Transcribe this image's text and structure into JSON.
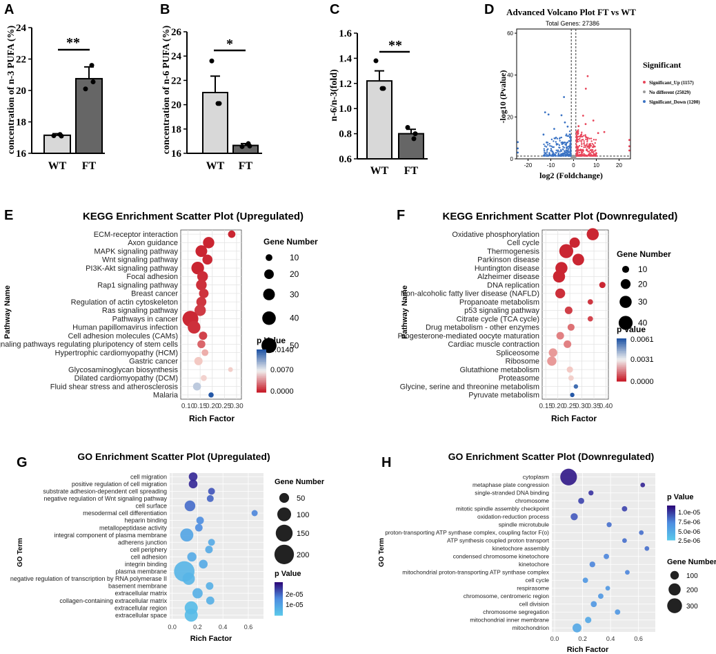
{
  "panel_letters": [
    "A",
    "B",
    "C",
    "D",
    "E",
    "F",
    "G",
    "H"
  ],
  "colors": {
    "wt_bar": "#d8d8d8",
    "ft_bar": "#666666",
    "volcano_up": "#e8455a",
    "volcano_down": "#3b73c4",
    "volcano_nd": "#9a9a9a"
  },
  "chart_data": [
    {
      "id": "A",
      "type": "bar",
      "ylabel": "concentration of n-3 PUFA (%)",
      "ylim": [
        16,
        24
      ],
      "yticks": [
        16,
        18,
        20,
        22,
        24
      ],
      "categories": [
        "WT",
        "FT"
      ],
      "values": [
        17.15,
        20.75
      ],
      "errors": [
        0.1,
        0.75
      ],
      "points": [
        [
          17.12,
          17.2,
          17.1
        ],
        [
          20.1,
          21.6,
          20.55
        ]
      ],
      "significance": "**"
    },
    {
      "id": "B",
      "type": "bar",
      "ylabel": "concentration of n-6 PUFA (%)",
      "ylim": [
        16,
        26
      ],
      "yticks": [
        16,
        18,
        20,
        22,
        24,
        26
      ],
      "categories": [
        "WT",
        "FT"
      ],
      "values": [
        21.0,
        16.65
      ],
      "errors": [
        1.35,
        0.15
      ],
      "points": [
        [
          23.6,
          20.1,
          20.1
        ],
        [
          16.55,
          16.8,
          16.6
        ]
      ],
      "significance": "*"
    },
    {
      "id": "C",
      "type": "bar",
      "ylabel": "n-6/n-3(fold)",
      "ylim": [
        0.6,
        1.6
      ],
      "yticks": [
        "0.6",
        "0.8",
        "1.0",
        "1.2",
        "1.4",
        "1.6"
      ],
      "categories": [
        "WT",
        "FT"
      ],
      "values": [
        1.22,
        0.8
      ],
      "errors": [
        0.08,
        0.035
      ],
      "points": [
        [
          1.38,
          1.16,
          1.16
        ],
        [
          0.85,
          0.76,
          0.8
        ]
      ],
      "significance": "**"
    },
    {
      "id": "D",
      "type": "scatter",
      "title": "Advanced Volcano Plot FT vs WT",
      "subtitle": "Total Genes: 27386",
      "xlabel": "log2 (Foldchange)",
      "ylabel": "-log10 (Pvalue)",
      "xlim": [
        -25,
        25
      ],
      "ylim": [
        0,
        62
      ],
      "xticks": [
        -20,
        -10,
        0,
        10,
        20
      ],
      "yticks": [
        0,
        20,
        40,
        60
      ],
      "legend_title": "Significant",
      "legend": [
        {
          "label": "Significant_Up (1157)",
          "color": "#e8455a"
        },
        {
          "label": "No different (25029)",
          "color": "#9a9a9a"
        },
        {
          "label": "Significant_Down (1200)",
          "color": "#3b73c4"
        }
      ],
      "outliers": [
        [
          6.2,
          39.5
        ],
        [
          5.4,
          33.5
        ],
        [
          -4.2,
          29.5
        ],
        [
          -12.5,
          22.2
        ],
        [
          -11,
          21.2
        ],
        [
          -5.3,
          20.8
        ],
        [
          4.2,
          20.6
        ],
        [
          -3.8,
          17.4
        ],
        [
          8.7,
          18.3
        ],
        [
          5.3,
          16.6
        ],
        [
          -2.6,
          15.4
        ],
        [
          2.2,
          15.6
        ],
        [
          13.5,
          12.8
        ],
        [
          -8.5,
          14.3
        ],
        [
          10.8,
          12.3
        ],
        [
          -13.2,
          11.6
        ]
      ]
    },
    {
      "id": "E",
      "type": "scatter",
      "title": "KEGG Enrichment Scatter Plot (Upregulated)",
      "xlabel": "Rich Factor",
      "ylabel": "Pathway Name",
      "xlim": [
        0.07,
        0.32
      ],
      "xticks": [
        "0.10",
        "0.15",
        "0.20",
        "0.25",
        "0.30"
      ],
      "size_title": "Gene Number",
      "size_legend": [
        10,
        20,
        30,
        40,
        50
      ],
      "color_title": "p Value",
      "color_ticks": [
        "0.0140",
        "0.0070",
        "0.0000"
      ],
      "color_min": 0,
      "color_max": 0.014,
      "terms": [
        "ECM-receptor interaction",
        "Axon guidance",
        "MAPK signaling pathway",
        "Wnt signaling pathway",
        "PI3K-Akt signaling pathway",
        "Focal adhesion",
        "Rap1 signaling pathway",
        "Breast cancer",
        "Regulation of actin cytoskeleton",
        "Ras signaling pathway",
        "Pathways in cancer",
        "Human papillomavirus infection",
        "Cell adhesion molecules (CAMs)",
        "Signaling pathways regulating pluripotency of stem cells",
        "Hypertrophic cardiomyopathy (HCM)",
        "Gastric cancer",
        "Glycosaminoglycan biosynthesis",
        "Dilated cardiomyopathy (DCM)",
        "Fluid shear stress and atherosclerosis",
        "Malaria"
      ],
      "rich": [
        0.28,
        0.185,
        0.155,
        0.18,
        0.14,
        0.16,
        0.155,
        0.165,
        0.155,
        0.15,
        0.11,
        0.125,
        0.162,
        0.155,
        0.17,
        0.143,
        0.275,
        0.165,
        0.137,
        0.195
      ],
      "genes": [
        12,
        28,
        30,
        22,
        35,
        25,
        25,
        20,
        22,
        28,
        55,
        35,
        15,
        14,
        10,
        15,
        5,
        8,
        14,
        6
      ],
      "pvalue": [
        0.0002,
        0.0002,
        0.0002,
        0.0003,
        0.0002,
        0.0004,
        0.0005,
        0.0006,
        0.0007,
        0.0008,
        0.0003,
        0.0005,
        0.001,
        0.002,
        0.004,
        0.005,
        0.0055,
        0.006,
        0.0105,
        0.014
      ]
    },
    {
      "id": "F",
      "type": "scatter",
      "title": "KEGG Enrichment Scatter Plot (Downregulated)",
      "xlabel": "Rich Factor",
      "ylabel": "Pathway Name",
      "xlim": [
        0.135,
        0.41
      ],
      "xticks": [
        "0.15",
        "0.20",
        "0.25",
        "0.30",
        "0.35",
        "0.40"
      ],
      "size_title": "Gene Number",
      "size_legend": [
        10,
        20,
        30,
        40
      ],
      "color_title": "p Value",
      "color_ticks": [
        "0.0061",
        "0.0031",
        "0.0000"
      ],
      "color_min": 0,
      "color_max": 0.0061,
      "terms": [
        "Oxidative phosphorylation",
        "Cell cycle",
        "Thermogenesis",
        "Parkinson disease",
        "Huntington disease",
        "Alzheimer disease",
        "DNA replication",
        "Non-alcoholic fatty liver disease (NAFLD)",
        "Propanoate metabolism",
        "p53 signaling pathway",
        "Citrate cycle (TCA cycle)",
        "Drug metabolism - other enzymes",
        "Progesterone-mediated oocyte maturation",
        "Cardiac muscle contraction",
        "Spliceosome",
        "Ribosome",
        "Glutathione metabolism",
        "Proteasome",
        "Glycine, serine and threonine metabolism",
        "Pyruvate metabolism"
      ],
      "rich": [
        0.345,
        0.27,
        0.235,
        0.285,
        0.215,
        0.205,
        0.385,
        0.21,
        0.335,
        0.245,
        0.335,
        0.255,
        0.21,
        0.24,
        0.18,
        0.175,
        0.25,
        0.255,
        0.275,
        0.26
      ],
      "genes": [
        30,
        22,
        40,
        28,
        30,
        30,
        8,
        20,
        6,
        12,
        6,
        10,
        12,
        12,
        15,
        18,
        8,
        6,
        4,
        4
      ],
      "pvalue": [
        0.0001,
        0.0001,
        0.0001,
        0.0001,
        0.0001,
        0.0001,
        0.0001,
        0.0002,
        0.0003,
        0.0004,
        0.0005,
        0.001,
        0.0012,
        0.0012,
        0.0015,
        0.0015,
        0.0022,
        0.0025,
        0.0058,
        0.0061
      ]
    },
    {
      "id": "G",
      "type": "scatter",
      "title": "GO Enrichment Scatter Plot (Upregulated)",
      "xlabel": "Rich Factor",
      "ylabel": "GO Term",
      "xlim": [
        -0.02,
        0.72
      ],
      "xticks": [
        "0.0",
        "0.2",
        "0.4",
        "0.6"
      ],
      "size_title": "Gene Number",
      "size_legend": [
        50,
        100,
        150,
        200
      ],
      "color_title": "p Value",
      "color_ticks": [
        "2e-05",
        "1e-05"
      ],
      "color_min": 0,
      "color_max": 3e-05,
      "terms": [
        "cell migration",
        "positive regulation of cell migration",
        "substrate adhesion-dependent cell spreading",
        "negative regulation of Wnt signaling pathway",
        "cell surface",
        "mesodermal cell differentiation",
        "heparin binding",
        "metallopeptidase activity",
        "integral component of plasma membrane",
        "adherens junction",
        "cell periphery",
        "cell adhesion",
        "integrin binding",
        "plasma membrane",
        "negative regulation of transcription by RNA polymerase II",
        "basement membrane",
        "extracellular matrix",
        "collagen-containing extracellular matrix",
        "extracellular region",
        "extracellular space"
      ],
      "rich": [
        0.165,
        0.165,
        0.31,
        0.3,
        0.14,
        0.65,
        0.22,
        0.21,
        0.115,
        0.31,
        0.29,
        0.155,
        0.245,
        0.095,
        0.13,
        0.295,
        0.2,
        0.3,
        0.15,
        0.15
      ],
      "genes": [
        40,
        40,
        25,
        25,
        60,
        20,
        30,
        30,
        90,
        25,
        30,
        45,
        40,
        220,
        80,
        30,
        55,
        35,
        90,
        90
      ],
      "pvalue": [
        2.4e-05,
        2.4e-05,
        1.7e-05,
        1.5e-05,
        1.4e-05,
        1.1e-05,
        1e-05,
        1e-05,
        6e-06,
        5e-06,
        5e-06,
        5e-06,
        5e-06,
        3e-06,
        3e-06,
        4e-06,
        4e-06,
        4e-06,
        2e-06,
        2e-06
      ]
    },
    {
      "id": "H",
      "type": "scatter",
      "title": "GO Enrichment Scatter Plot (Downregulated)",
      "xlabel": "Rich Factor",
      "ylabel": "GO Term",
      "xlim": [
        -0.02,
        0.72
      ],
      "xticks": [
        "0.0",
        "0.2",
        "0.4",
        "0.6"
      ],
      "size_title": "Gene Number",
      "size_legend": [
        100,
        200,
        300
      ],
      "color_title": "p Value",
      "color_ticks": [
        "1.0e-05",
        "7.5e-06",
        "5.0e-06",
        "2.5e-06"
      ],
      "color_min": 0,
      "color_max": 1.1e-05,
      "terms": [
        "cytoplasm",
        "metaphase plate congression",
        "single-stranded DNA binding",
        "chromosome",
        "mitotic spindle assembly checkpoint",
        "oxidation-reduction process",
        "spindle microtubule",
        "proton-transporting ATP synthase complex, coupling factor F(o)",
        "ATP synthesis coupled proton transport",
        "kinetochore assembly",
        "condensed chromosome kinetochore",
        "kinetochore",
        "mitochondrial proton-transporting ATP synthase complex",
        "cell cycle",
        "respirasome",
        "chromosome, centromeric region",
        "cell division",
        "chromosome segregation",
        "mitochondrial inner membrane",
        "mitochondrion"
      ],
      "rich": [
        0.1,
        0.63,
        0.26,
        0.19,
        0.5,
        0.14,
        0.39,
        0.62,
        0.5,
        0.66,
        0.37,
        0.27,
        0.52,
        0.22,
        0.38,
        0.33,
        0.28,
        0.45,
        0.24,
        0.16
      ],
      "genes": [
        380,
        30,
        35,
        50,
        40,
        70,
        35,
        30,
        30,
        30,
        40,
        45,
        30,
        40,
        30,
        40,
        50,
        40,
        55,
        110
      ],
      "pvalue": [
        1e-05,
        9e-06,
        8e-06,
        7e-06,
        7e-06,
        6e-06,
        5e-06,
        5e-06,
        5e-06,
        5e-06,
        4e-06,
        4e-06,
        4e-06,
        3e-06,
        3e-06,
        3e-06,
        3e-06,
        3e-06,
        2e-06,
        2e-06
      ]
    }
  ]
}
